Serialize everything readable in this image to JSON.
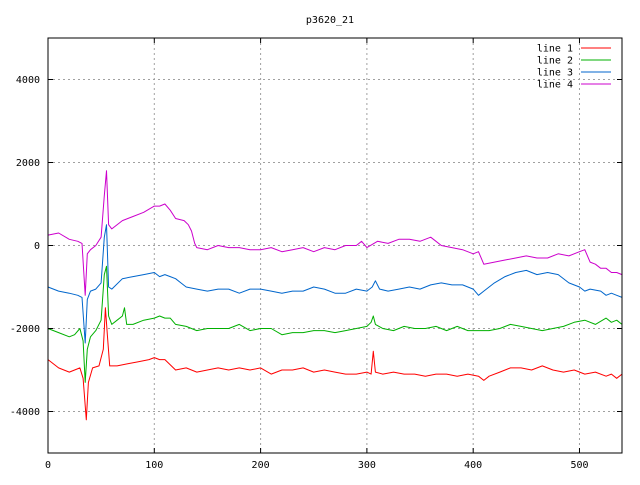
{
  "chart_data": {
    "type": "line",
    "title": "p3620_21",
    "xlabel": "",
    "ylabel": "",
    "xlim": [
      0,
      540
    ],
    "ylim": [
      -5000,
      5000
    ],
    "x_ticks": [
      0,
      100,
      200,
      300,
      400,
      500
    ],
    "y_ticks": [
      -4000,
      -2000,
      0,
      2000,
      4000
    ],
    "grid": true,
    "legend_position": "top-right",
    "series": [
      {
        "name": "line 1",
        "color": "#ff0000",
        "points": [
          [
            0,
            -2750
          ],
          [
            10,
            -2950
          ],
          [
            20,
            -3050
          ],
          [
            30,
            -2950
          ],
          [
            33,
            -3200
          ],
          [
            36,
            -4200
          ],
          [
            38,
            -3300
          ],
          [
            42,
            -2950
          ],
          [
            48,
            -2900
          ],
          [
            52,
            -2500
          ],
          [
            54,
            -1500
          ],
          [
            56,
            -2200
          ],
          [
            58,
            -2900
          ],
          [
            65,
            -2900
          ],
          [
            75,
            -2850
          ],
          [
            85,
            -2800
          ],
          [
            95,
            -2750
          ],
          [
            100,
            -2700
          ],
          [
            105,
            -2750
          ],
          [
            110,
            -2750
          ],
          [
            120,
            -3000
          ],
          [
            130,
            -2950
          ],
          [
            140,
            -3050
          ],
          [
            150,
            -3000
          ],
          [
            160,
            -2950
          ],
          [
            170,
            -3000
          ],
          [
            180,
            -2950
          ],
          [
            190,
            -3000
          ],
          [
            200,
            -2950
          ],
          [
            210,
            -3100
          ],
          [
            220,
            -3000
          ],
          [
            230,
            -3000
          ],
          [
            240,
            -2950
          ],
          [
            250,
            -3050
          ],
          [
            260,
            -3000
          ],
          [
            270,
            -3050
          ],
          [
            280,
            -3100
          ],
          [
            290,
            -3100
          ],
          [
            300,
            -3050
          ],
          [
            304,
            -3100
          ],
          [
            306,
            -2550
          ],
          [
            308,
            -3050
          ],
          [
            315,
            -3100
          ],
          [
            325,
            -3050
          ],
          [
            335,
            -3100
          ],
          [
            345,
            -3100
          ],
          [
            355,
            -3150
          ],
          [
            365,
            -3100
          ],
          [
            375,
            -3100
          ],
          [
            385,
            -3150
          ],
          [
            395,
            -3100
          ],
          [
            405,
            -3150
          ],
          [
            410,
            -3250
          ],
          [
            415,
            -3150
          ],
          [
            425,
            -3050
          ],
          [
            435,
            -2950
          ],
          [
            445,
            -2950
          ],
          [
            455,
            -3000
          ],
          [
            465,
            -2900
          ],
          [
            475,
            -3000
          ],
          [
            485,
            -3050
          ],
          [
            495,
            -3000
          ],
          [
            505,
            -3100
          ],
          [
            515,
            -3050
          ],
          [
            525,
            -3150
          ],
          [
            530,
            -3100
          ],
          [
            535,
            -3200
          ],
          [
            540,
            -3100
          ]
        ]
      },
      {
        "name": "line 2",
        "color": "#00b000",
        "points": [
          [
            0,
            -2000
          ],
          [
            10,
            -2100
          ],
          [
            20,
            -2200
          ],
          [
            25,
            -2150
          ],
          [
            30,
            -2000
          ],
          [
            33,
            -2300
          ],
          [
            35,
            -3300
          ],
          [
            37,
            -2500
          ],
          [
            40,
            -2200
          ],
          [
            45,
            -2050
          ],
          [
            50,
            -1800
          ],
          [
            53,
            -700
          ],
          [
            55,
            -500
          ],
          [
            57,
            -1700
          ],
          [
            60,
            -1900
          ],
          [
            65,
            -1800
          ],
          [
            70,
            -1700
          ],
          [
            72,
            -1500
          ],
          [
            74,
            -1900
          ],
          [
            80,
            -1900
          ],
          [
            90,
            -1800
          ],
          [
            100,
            -1750
          ],
          [
            105,
            -1700
          ],
          [
            110,
            -1750
          ],
          [
            115,
            -1750
          ],
          [
            120,
            -1900
          ],
          [
            130,
            -1950
          ],
          [
            140,
            -2050
          ],
          [
            150,
            -2000
          ],
          [
            160,
            -2000
          ],
          [
            170,
            -2000
          ],
          [
            180,
            -1900
          ],
          [
            190,
            -2050
          ],
          [
            200,
            -2000
          ],
          [
            210,
            -2000
          ],
          [
            220,
            -2150
          ],
          [
            230,
            -2100
          ],
          [
            240,
            -2100
          ],
          [
            250,
            -2050
          ],
          [
            260,
            -2050
          ],
          [
            270,
            -2100
          ],
          [
            280,
            -2050
          ],
          [
            290,
            -2000
          ],
          [
            300,
            -1950
          ],
          [
            304,
            -1850
          ],
          [
            306,
            -1700
          ],
          [
            308,
            -1900
          ],
          [
            315,
            -2000
          ],
          [
            325,
            -2050
          ],
          [
            335,
            -1950
          ],
          [
            345,
            -2000
          ],
          [
            355,
            -2000
          ],
          [
            365,
            -1950
          ],
          [
            375,
            -2050
          ],
          [
            385,
            -1950
          ],
          [
            395,
            -2050
          ],
          [
            405,
            -2050
          ],
          [
            415,
            -2050
          ],
          [
            425,
            -2000
          ],
          [
            435,
            -1900
          ],
          [
            445,
            -1950
          ],
          [
            455,
            -2000
          ],
          [
            465,
            -2050
          ],
          [
            475,
            -2000
          ],
          [
            485,
            -1950
          ],
          [
            495,
            -1850
          ],
          [
            505,
            -1800
          ],
          [
            515,
            -1900
          ],
          [
            525,
            -1750
          ],
          [
            530,
            -1850
          ],
          [
            535,
            -1800
          ],
          [
            540,
            -1900
          ]
        ]
      },
      {
        "name": "line 3",
        "color": "#0066cc",
        "points": [
          [
            0,
            -1000
          ],
          [
            10,
            -1100
          ],
          [
            20,
            -1150
          ],
          [
            28,
            -1200
          ],
          [
            32,
            -1250
          ],
          [
            35,
            -2350
          ],
          [
            37,
            -1300
          ],
          [
            40,
            -1100
          ],
          [
            45,
            -1050
          ],
          [
            50,
            -900
          ],
          [
            53,
            200
          ],
          [
            55,
            500
          ],
          [
            57,
            -1000
          ],
          [
            60,
            -1050
          ],
          [
            70,
            -800
          ],
          [
            80,
            -750
          ],
          [
            90,
            -700
          ],
          [
            100,
            -650
          ],
          [
            105,
            -750
          ],
          [
            110,
            -700
          ],
          [
            115,
            -750
          ],
          [
            120,
            -800
          ],
          [
            125,
            -900
          ],
          [
            130,
            -1000
          ],
          [
            140,
            -1050
          ],
          [
            150,
            -1100
          ],
          [
            160,
            -1050
          ],
          [
            170,
            -1050
          ],
          [
            180,
            -1150
          ],
          [
            190,
            -1050
          ],
          [
            200,
            -1050
          ],
          [
            210,
            -1100
          ],
          [
            220,
            -1150
          ],
          [
            230,
            -1100
          ],
          [
            240,
            -1100
          ],
          [
            250,
            -1000
          ],
          [
            260,
            -1050
          ],
          [
            270,
            -1150
          ],
          [
            280,
            -1150
          ],
          [
            290,
            -1050
          ],
          [
            300,
            -1100
          ],
          [
            305,
            -1000
          ],
          [
            308,
            -850
          ],
          [
            312,
            -1050
          ],
          [
            320,
            -1100
          ],
          [
            330,
            -1050
          ],
          [
            340,
            -1000
          ],
          [
            350,
            -1050
          ],
          [
            360,
            -950
          ],
          [
            370,
            -900
          ],
          [
            380,
            -950
          ],
          [
            390,
            -950
          ],
          [
            400,
            -1050
          ],
          [
            405,
            -1200
          ],
          [
            410,
            -1100
          ],
          [
            420,
            -900
          ],
          [
            430,
            -750
          ],
          [
            440,
            -650
          ],
          [
            450,
            -600
          ],
          [
            460,
            -700
          ],
          [
            470,
            -650
          ],
          [
            480,
            -700
          ],
          [
            490,
            -900
          ],
          [
            500,
            -1000
          ],
          [
            505,
            -1100
          ],
          [
            510,
            -1050
          ],
          [
            520,
            -1100
          ],
          [
            525,
            -1200
          ],
          [
            530,
            -1150
          ],
          [
            535,
            -1200
          ],
          [
            540,
            -1250
          ]
        ]
      },
      {
        "name": "line 4",
        "color": "#cc00cc",
        "points": [
          [
            0,
            250
          ],
          [
            10,
            300
          ],
          [
            20,
            150
          ],
          [
            28,
            100
          ],
          [
            32,
            50
          ],
          [
            35,
            -1200
          ],
          [
            37,
            -200
          ],
          [
            40,
            -100
          ],
          [
            45,
            0
          ],
          [
            50,
            200
          ],
          [
            53,
            1200
          ],
          [
            55,
            1800
          ],
          [
            57,
            500
          ],
          [
            60,
            400
          ],
          [
            70,
            600
          ],
          [
            80,
            700
          ],
          [
            90,
            800
          ],
          [
            100,
            950
          ],
          [
            105,
            950
          ],
          [
            110,
            1000
          ],
          [
            115,
            850
          ],
          [
            120,
            650
          ],
          [
            128,
            600
          ],
          [
            132,
            500
          ],
          [
            135,
            350
          ],
          [
            138,
            50
          ],
          [
            140,
            -50
          ],
          [
            150,
            -100
          ],
          [
            160,
            0
          ],
          [
            170,
            -50
          ],
          [
            180,
            -50
          ],
          [
            190,
            -100
          ],
          [
            200,
            -100
          ],
          [
            210,
            -50
          ],
          [
            220,
            -150
          ],
          [
            230,
            -100
          ],
          [
            240,
            -50
          ],
          [
            250,
            -150
          ],
          [
            260,
            -50
          ],
          [
            270,
            -100
          ],
          [
            280,
            0
          ],
          [
            290,
            0
          ],
          [
            295,
            100
          ],
          [
            300,
            -50
          ],
          [
            310,
            100
          ],
          [
            320,
            50
          ],
          [
            330,
            150
          ],
          [
            340,
            150
          ],
          [
            350,
            100
          ],
          [
            360,
            200
          ],
          [
            365,
            100
          ],
          [
            370,
            0
          ],
          [
            380,
            -50
          ],
          [
            390,
            -100
          ],
          [
            400,
            -200
          ],
          [
            405,
            -150
          ],
          [
            410,
            -450
          ],
          [
            420,
            -400
          ],
          [
            430,
            -350
          ],
          [
            440,
            -300
          ],
          [
            450,
            -250
          ],
          [
            460,
            -300
          ],
          [
            470,
            -300
          ],
          [
            480,
            -200
          ],
          [
            490,
            -250
          ],
          [
            500,
            -150
          ],
          [
            505,
            -100
          ],
          [
            510,
            -400
          ],
          [
            515,
            -450
          ],
          [
            520,
            -550
          ],
          [
            525,
            -550
          ],
          [
            530,
            -650
          ],
          [
            535,
            -650
          ],
          [
            540,
            -700
          ]
        ]
      }
    ]
  }
}
